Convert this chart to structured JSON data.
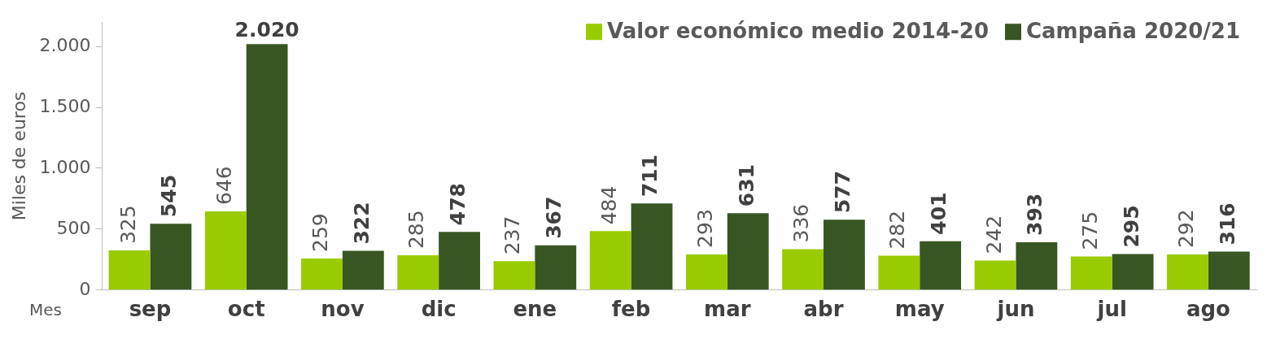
{
  "chart_data": {
    "type": "bar",
    "ylabel": "Miles de euros",
    "xlabel": "Mes",
    "categories": [
      "sep",
      "oct",
      "nov",
      "dic",
      "ene",
      "feb",
      "mar",
      "abr",
      "may",
      "jun",
      "jul",
      "ago"
    ],
    "series": [
      {
        "name": "Valor económico medio 2014-20",
        "color": "#99cc00",
        "values": [
          325,
          646,
          259,
          285,
          237,
          484,
          293,
          336,
          282,
          242,
          275,
          292
        ],
        "value_labels": [
          "325",
          "646",
          "259",
          "285",
          "237",
          "484",
          "293",
          "336",
          "282",
          "242",
          "275",
          "292"
        ]
      },
      {
        "name": "Campaña 2020/21",
        "color": "#375623",
        "values": [
          545,
          2020,
          322,
          478,
          367,
          711,
          631,
          577,
          401,
          393,
          295,
          316
        ],
        "value_labels": [
          "545",
          "2.020",
          "322",
          "478",
          "367",
          "711",
          "631",
          "577",
          "401",
          "393",
          "295",
          "316"
        ]
      }
    ],
    "ylim": [
      0,
      2200
    ],
    "yticks": [
      0,
      500,
      {
        "value": 1000,
        "label": "1.000"
      },
      {
        "value": 1500,
        "label": "1.500"
      },
      {
        "value": 2000,
        "label": "2.000"
      }
    ],
    "grid": false,
    "legend": "top right"
  }
}
